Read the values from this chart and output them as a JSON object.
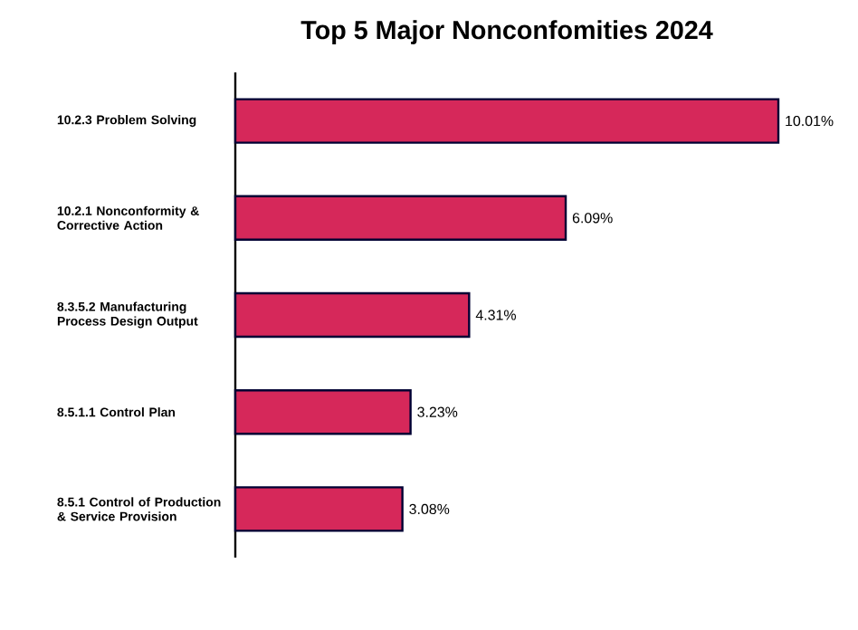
{
  "chart_data": {
    "type": "bar",
    "orientation": "horizontal",
    "title": "Top 5 Major Nonconfomities 2024",
    "categories": [
      "10.2.3 Problem Solving",
      "10.2.1 Nonconformity & Corrective Action",
      "8.3.5.2 Manufacturing Process Design Output",
      "8.5.1.1 Control Plan",
      "8.5.1 Control of Production & Service Provision"
    ],
    "values": [
      10.01,
      6.09,
      4.31,
      3.23,
      3.08
    ],
    "value_labels": [
      "10.01%",
      "6.09%",
      "4.31%",
      "3.23%",
      "3.08%"
    ],
    "color": "#d6285a"
  }
}
